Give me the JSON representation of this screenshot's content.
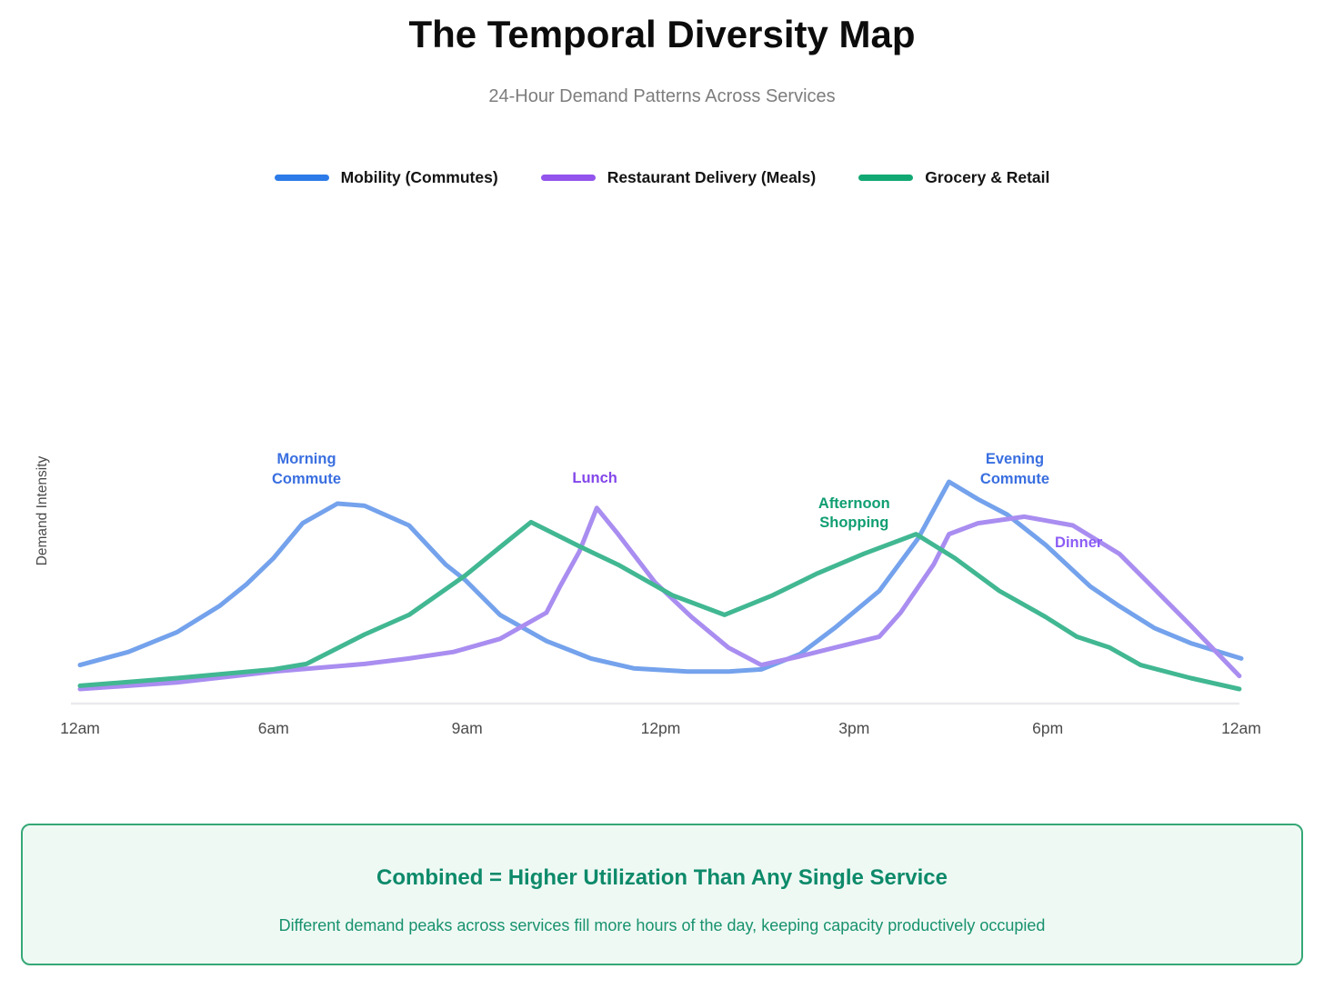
{
  "header": {
    "title": "The Temporal Diversity Map",
    "subtitle": "24-Hour Demand Patterns Across Services"
  },
  "chart_data": {
    "type": "line",
    "title": "The Temporal Diversity Map",
    "subtitle": "24-Hour Demand Patterns Across Services",
    "xlabel": "",
    "ylabel": "Demand Intensity",
    "x_tick_labels": [
      "12am",
      "6am",
      "9am",
      "12pm",
      "3pm",
      "6pm",
      "12am"
    ],
    "x_units": "tick index 0-6; ticks are evenly spaced on the axis",
    "ylim": [
      0,
      110
    ],
    "grid": false,
    "legend_position": "top",
    "axis_color": "#e9e9ee",
    "series": [
      {
        "name": "Mobility (Commutes)",
        "legend_color": "#2d7be8",
        "line_color": "#74a2ec",
        "points": [
          [
            0,
            16
          ],
          [
            0.25,
            22
          ],
          [
            0.5,
            31
          ],
          [
            0.72,
            43
          ],
          [
            0.86,
            53
          ],
          [
            1.0,
            65
          ],
          [
            1.15,
            81
          ],
          [
            1.33,
            90
          ],
          [
            1.47,
            89
          ],
          [
            1.7,
            80
          ],
          [
            1.89,
            62
          ],
          [
            1.99,
            55
          ],
          [
            2.17,
            39
          ],
          [
            2.41,
            27
          ],
          [
            2.64,
            19
          ],
          [
            2.86,
            14.5
          ],
          [
            3.14,
            13
          ],
          [
            3.35,
            13
          ],
          [
            3.52,
            14
          ],
          [
            3.72,
            21
          ],
          [
            3.9,
            33
          ],
          [
            4.13,
            50
          ],
          [
            4.33,
            74
          ],
          [
            4.49,
            100
          ],
          [
            4.64,
            92
          ],
          [
            4.79,
            85
          ],
          [
            4.99,
            71
          ],
          [
            5.22,
            52
          ],
          [
            5.37,
            43
          ],
          [
            5.55,
            33
          ],
          [
            5.74,
            26
          ],
          [
            6,
            19
          ]
        ]
      },
      {
        "name": "Restaurant Delivery (Meals)",
        "legend_color": "#9254ec",
        "line_color": "#a98df0",
        "points": [
          [
            0,
            5
          ],
          [
            0.5,
            8
          ],
          [
            1.0,
            13
          ],
          [
            1.47,
            16.5
          ],
          [
            1.7,
            19
          ],
          [
            1.93,
            22
          ],
          [
            2.17,
            28
          ],
          [
            2.41,
            40
          ],
          [
            2.48,
            52
          ],
          [
            2.58,
            68
          ],
          [
            2.67,
            88
          ],
          [
            2.78,
            76
          ],
          [
            2.97,
            54
          ],
          [
            3.16,
            38
          ],
          [
            3.35,
            24
          ],
          [
            3.52,
            16
          ],
          [
            3.72,
            20
          ],
          [
            3.9,
            24
          ],
          [
            4.13,
            29
          ],
          [
            4.24,
            40
          ],
          [
            4.41,
            62
          ],
          [
            4.49,
            76
          ],
          [
            4.64,
            81
          ],
          [
            4.88,
            84
          ],
          [
            5.13,
            80
          ],
          [
            5.37,
            67
          ],
          [
            5.55,
            51
          ],
          [
            5.74,
            34
          ],
          [
            5.99,
            11
          ]
        ]
      },
      {
        "name": "Grocery & Retail",
        "legend_color": "#12a873",
        "line_color": "#41b792",
        "points": [
          [
            0,
            6.5
          ],
          [
            0.5,
            10
          ],
          [
            1.0,
            14
          ],
          [
            1.17,
            16.5
          ],
          [
            1.47,
            30
          ],
          [
            1.7,
            39
          ],
          [
            1.99,
            57
          ],
          [
            2.17,
            70
          ],
          [
            2.33,
            81.5
          ],
          [
            2.59,
            70
          ],
          [
            2.78,
            62
          ],
          [
            3.06,
            48
          ],
          [
            3.33,
            39
          ],
          [
            3.58,
            48
          ],
          [
            3.81,
            58
          ],
          [
            4.05,
            67
          ],
          [
            4.32,
            76
          ],
          [
            4.52,
            65
          ],
          [
            4.75,
            50
          ],
          [
            4.99,
            38
          ],
          [
            5.15,
            29
          ],
          [
            5.32,
            24
          ],
          [
            5.48,
            16
          ],
          [
            5.74,
            10
          ],
          [
            5.99,
            5
          ]
        ]
      }
    ],
    "annotations": [
      {
        "text": "Morning\nCommute",
        "x": 1.17,
        "y": 105.4,
        "color": "#3a6fe0"
      },
      {
        "text": "Lunch",
        "x": 2.66,
        "y": 101.3,
        "color": "#8347ea"
      },
      {
        "text": "Afternoon\nShopping",
        "x": 4.0,
        "y": 85.2,
        "color": "#0f9e72"
      },
      {
        "text": "Evening\nCommute",
        "x": 4.83,
        "y": 105.4,
        "color": "#3a6fe0"
      },
      {
        "text": "Dinner",
        "x": 5.16,
        "y": 71.7,
        "color": "#8b5cf6"
      }
    ]
  },
  "callout": {
    "title": "Combined = Higher Utilization Than Any Single Service",
    "subtitle": "Different demand peaks across services fill more hours of the day, keeping capacity productively occupied",
    "border_color": "#36a877",
    "background": "#eff9f4",
    "title_color": "#0d8a6a",
    "text_color": "#18926e"
  }
}
